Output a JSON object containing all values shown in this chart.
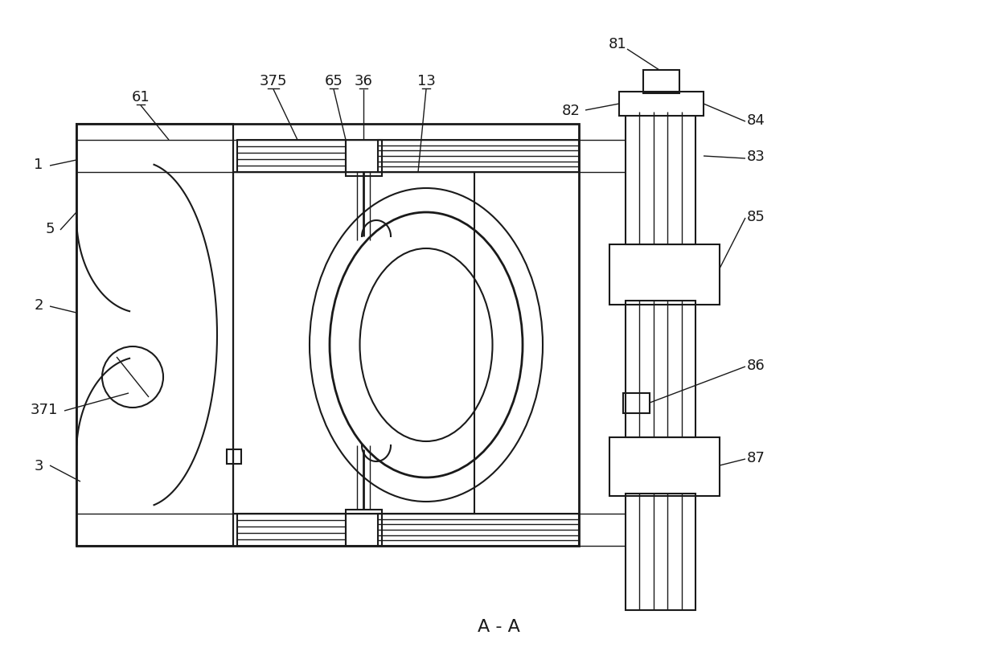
{
  "bg_color": "#ffffff",
  "lc": "#1a1a1a",
  "lw": 1.5,
  "lw_thin": 1.0,
  "lw_thick": 2.0,
  "title": "A - A"
}
